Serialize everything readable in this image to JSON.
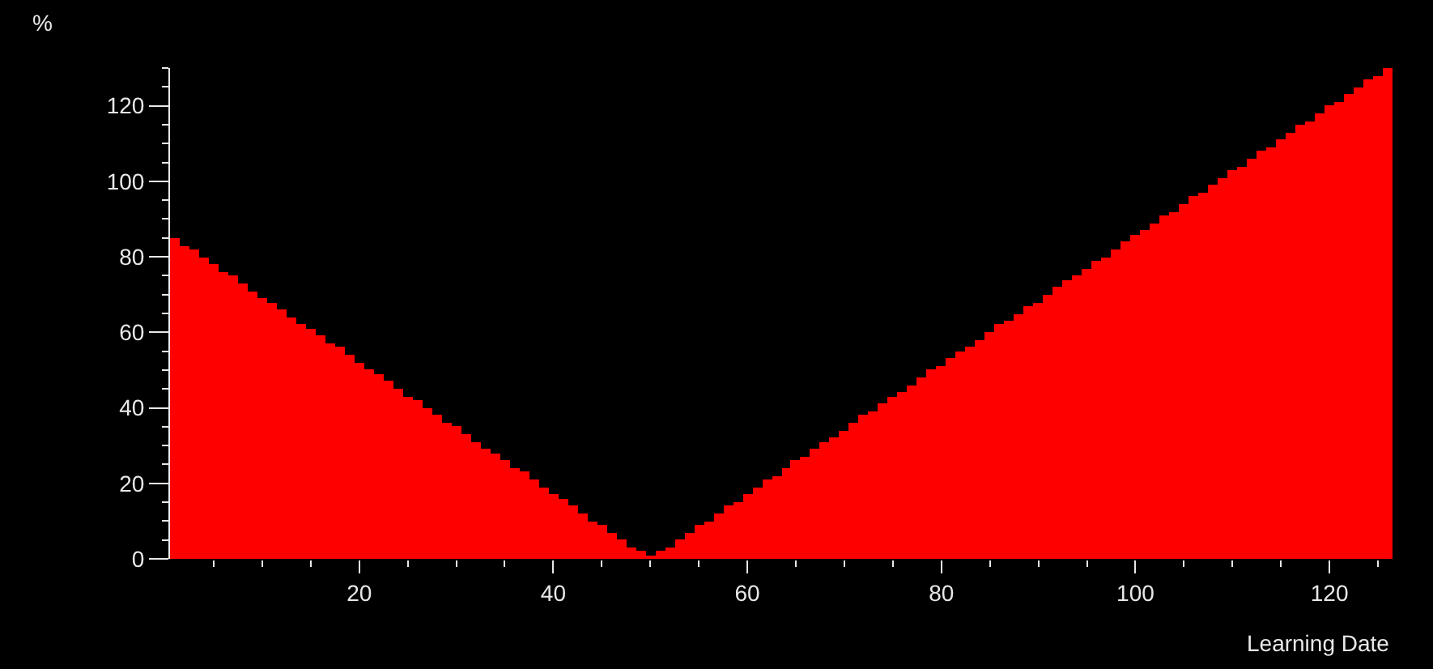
{
  "chart_data": {
    "type": "bar",
    "xlabel": "Learning Date",
    "ylabel": "%",
    "color": "#ff0000",
    "x": [
      1,
      2,
      3,
      4,
      5,
      6,
      7,
      8,
      9,
      10,
      11,
      12,
      13,
      14,
      15,
      16,
      17,
      18,
      19,
      20,
      21,
      22,
      23,
      24,
      25,
      26,
      27,
      28,
      29,
      30,
      31,
      32,
      33,
      34,
      35,
      36,
      37,
      38,
      39,
      40,
      41,
      42,
      43,
      44,
      45,
      46,
      47,
      48,
      49,
      50,
      51,
      52,
      53,
      54,
      55,
      56,
      57,
      58,
      59,
      60,
      61,
      62,
      63,
      64,
      65,
      66,
      67,
      68,
      69,
      70,
      71,
      72,
      73,
      74,
      75,
      76,
      77,
      78,
      79,
      80,
      81,
      82,
      83,
      84,
      85,
      86,
      87,
      88,
      89,
      90,
      91,
      92,
      93,
      94,
      95,
      96,
      97,
      98,
      99,
      100,
      101,
      102,
      103,
      104,
      105,
      106,
      107,
      108,
      109,
      110,
      111,
      112,
      113,
      114,
      115,
      116,
      117,
      118,
      119,
      120,
      121,
      122,
      123,
      124,
      125,
      126
    ],
    "values": [
      85,
      83,
      82,
      80,
      78,
      76,
      75,
      73,
      71,
      69,
      68,
      66,
      64,
      62,
      61,
      59,
      57,
      56,
      54,
      52,
      50,
      49,
      47,
      45,
      43,
      42,
      40,
      38,
      36,
      35,
      33,
      31,
      29,
      28,
      26,
      24,
      23,
      21,
      19,
      17,
      16,
      14,
      12,
      10,
      9,
      7,
      5,
      3,
      2,
      1,
      2,
      3,
      5,
      7,
      9,
      10,
      12,
      14,
      15,
      17,
      19,
      21,
      22,
      24,
      26,
      27,
      29,
      31,
      32,
      34,
      36,
      38,
      39,
      41,
      43,
      44,
      46,
      48,
      50,
      51,
      53,
      55,
      56,
      58,
      60,
      62,
      63,
      65,
      67,
      68,
      70,
      72,
      74,
      75,
      77,
      79,
      80,
      82,
      84,
      86,
      87,
      89,
      91,
      92,
      94,
      96,
      97,
      99,
      101,
      103,
      104,
      106,
      108,
      109,
      111,
      113,
      115,
      116,
      118,
      120,
      121,
      123,
      125,
      127,
      128,
      130
    ],
    "xlim": [
      0.5,
      126.5
    ],
    "xticks": [
      20,
      40,
      60,
      80,
      100,
      120
    ],
    "ylim": [
      0,
      130
    ],
    "yticks": [
      0,
      20,
      40,
      60,
      80,
      100,
      120
    ]
  }
}
